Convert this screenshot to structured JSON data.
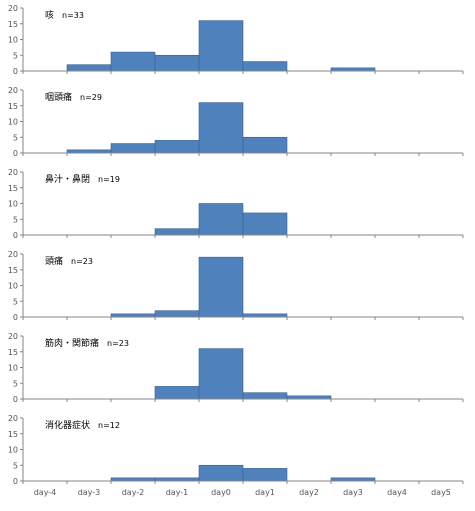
{
  "chart_data": [
    {
      "type": "bar",
      "title": "咳",
      "subtitle": "n=33",
      "categories": [
        "day-4",
        "day-3",
        "day-2",
        "day-1",
        "day0",
        "day1",
        "day2",
        "day3",
        "day4",
        "day5"
      ],
      "values": [
        0,
        2,
        6,
        5,
        16,
        3,
        0,
        1,
        0,
        0
      ],
      "ylim": [
        0,
        20
      ],
      "yticks": [
        0,
        5,
        10,
        15,
        20
      ],
      "grid": false,
      "color": "#4F81BD"
    },
    {
      "type": "bar",
      "title": "咽頭痛",
      "subtitle": "n=29",
      "categories": [
        "day-4",
        "day-3",
        "day-2",
        "day-1",
        "day0",
        "day1",
        "day2",
        "day3",
        "day4",
        "day5"
      ],
      "values": [
        0,
        1,
        3,
        4,
        16,
        5,
        0,
        0,
        0,
        0
      ],
      "ylim": [
        0,
        20
      ],
      "yticks": [
        0,
        5,
        10,
        15,
        20
      ],
      "grid": false,
      "color": "#4F81BD"
    },
    {
      "type": "bar",
      "title": "鼻汁・鼻閉",
      "subtitle": "n=19",
      "categories": [
        "day-4",
        "day-3",
        "day-2",
        "day-1",
        "day0",
        "day1",
        "day2",
        "day3",
        "day4",
        "day5"
      ],
      "values": [
        0,
        0,
        0,
        2,
        10,
        7,
        0,
        0,
        0,
        0
      ],
      "ylim": [
        0,
        20
      ],
      "yticks": [
        0,
        5,
        10,
        15,
        20
      ],
      "grid": false,
      "color": "#4F81BD"
    },
    {
      "type": "bar",
      "title": "頭痛",
      "subtitle": "n=23",
      "categories": [
        "day-4",
        "day-3",
        "day-2",
        "day-1",
        "day0",
        "day1",
        "day2",
        "day3",
        "day4",
        "day5"
      ],
      "values": [
        0,
        0,
        1,
        2,
        19,
        1,
        0,
        0,
        0,
        0
      ],
      "ylim": [
        0,
        20
      ],
      "yticks": [
        0,
        5,
        10,
        15,
        20
      ],
      "grid": false,
      "color": "#4F81BD"
    },
    {
      "type": "bar",
      "title": "筋肉・関節痛",
      "subtitle": "n=23",
      "categories": [
        "day-4",
        "day-3",
        "day-2",
        "day-1",
        "day0",
        "day1",
        "day2",
        "day3",
        "day4",
        "day5"
      ],
      "values": [
        0,
        0,
        0,
        4,
        16,
        2,
        1,
        0,
        0,
        0
      ],
      "ylim": [
        0,
        20
      ],
      "yticks": [
        0,
        5,
        10,
        15,
        20
      ],
      "grid": false,
      "color": "#4F81BD"
    },
    {
      "type": "bar",
      "title": "消化器症状",
      "subtitle": "n=12",
      "categories": [
        "day-4",
        "day-3",
        "day-2",
        "day-1",
        "day0",
        "day1",
        "day2",
        "day3",
        "day4",
        "day5"
      ],
      "values": [
        0,
        0,
        1,
        1,
        5,
        4,
        0,
        1,
        0,
        0
      ],
      "ylim": [
        0,
        20
      ],
      "yticks": [
        0,
        5,
        10,
        15,
        20
      ],
      "grid": false,
      "color": "#4F81BD"
    }
  ]
}
